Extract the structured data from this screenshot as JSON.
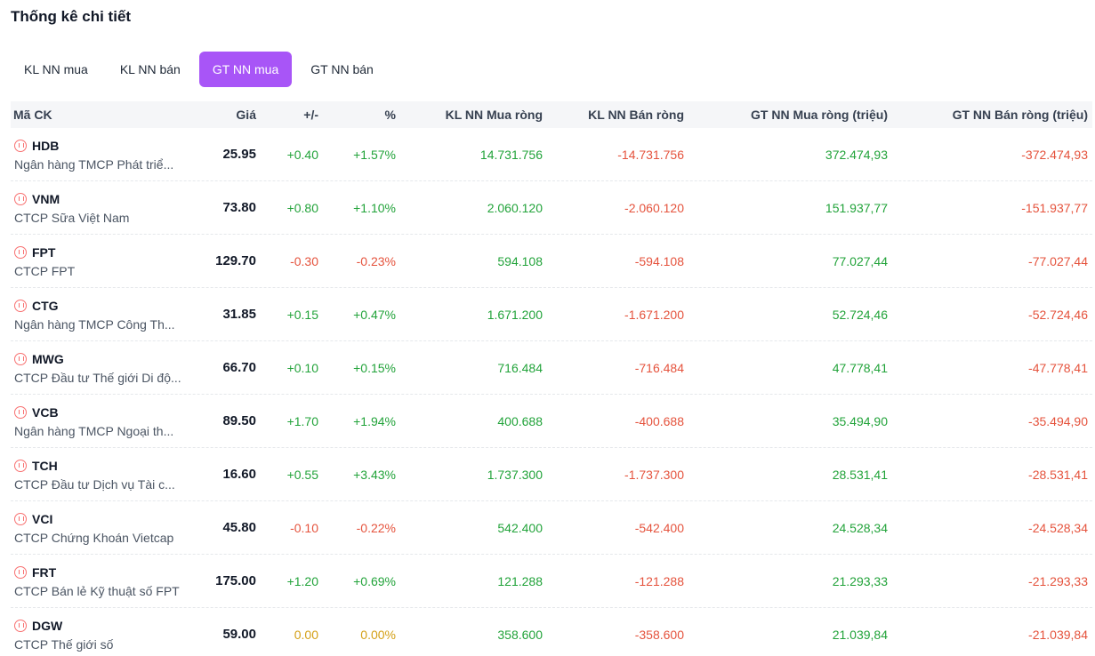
{
  "page_title": "Thống kê chi tiết",
  "tabs": [
    {
      "label": "KL NN mua",
      "active": false
    },
    {
      "label": "KL NN bán",
      "active": false
    },
    {
      "label": "GT NN mua",
      "active": true
    },
    {
      "label": "GT NN bán",
      "active": false
    }
  ],
  "columns": {
    "symbol": "Mã CK",
    "price": "Giá",
    "change": "+/-",
    "percent": "%",
    "kl_buy": "KL NN Mua ròng",
    "kl_sell": "KL NN Bán ròng",
    "gt_buy": "GT NN Mua ròng (triệu)",
    "gt_sell": "GT NN Bán ròng (triệu)"
  },
  "colors": {
    "accent": "#a855f7",
    "up": "#22a33a",
    "down": "#e5533d",
    "reference": "#d4a017",
    "icon": "#f87171"
  },
  "rows": [
    {
      "code": "HDB",
      "name": "Ngân hàng TMCP Phát triể...",
      "price": "25.95",
      "change": "+0.40",
      "percent": "+1.57%",
      "trend": "up",
      "kl_buy": "14.731.756",
      "kl_sell": "-14.731.756",
      "gt_buy": "372.474,93",
      "gt_sell": "-372.474,93"
    },
    {
      "code": "VNM",
      "name": "CTCP Sữa Việt Nam",
      "price": "73.80",
      "change": "+0.80",
      "percent": "+1.10%",
      "trend": "up",
      "kl_buy": "2.060.120",
      "kl_sell": "-2.060.120",
      "gt_buy": "151.937,77",
      "gt_sell": "-151.937,77"
    },
    {
      "code": "FPT",
      "name": "CTCP FPT",
      "price": "129.70",
      "change": "-0.30",
      "percent": "-0.23%",
      "trend": "down",
      "kl_buy": "594.108",
      "kl_sell": "-594.108",
      "gt_buy": "77.027,44",
      "gt_sell": "-77.027,44"
    },
    {
      "code": "CTG",
      "name": "Ngân hàng TMCP Công Th...",
      "price": "31.85",
      "change": "+0.15",
      "percent": "+0.47%",
      "trend": "up",
      "kl_buy": "1.671.200",
      "kl_sell": "-1.671.200",
      "gt_buy": "52.724,46",
      "gt_sell": "-52.724,46"
    },
    {
      "code": "MWG",
      "name": "CTCP Đầu tư Thế giới Di độ...",
      "price": "66.70",
      "change": "+0.10",
      "percent": "+0.15%",
      "trend": "up",
      "kl_buy": "716.484",
      "kl_sell": "-716.484",
      "gt_buy": "47.778,41",
      "gt_sell": "-47.778,41"
    },
    {
      "code": "VCB",
      "name": "Ngân hàng TMCP Ngoại th...",
      "price": "89.50",
      "change": "+1.70",
      "percent": "+1.94%",
      "trend": "up",
      "kl_buy": "400.688",
      "kl_sell": "-400.688",
      "gt_buy": "35.494,90",
      "gt_sell": "-35.494,90"
    },
    {
      "code": "TCH",
      "name": "CTCP Đầu tư Dịch vụ Tài c...",
      "price": "16.60",
      "change": "+0.55",
      "percent": "+3.43%",
      "trend": "up",
      "kl_buy": "1.737.300",
      "kl_sell": "-1.737.300",
      "gt_buy": "28.531,41",
      "gt_sell": "-28.531,41"
    },
    {
      "code": "VCI",
      "name": "CTCP Chứng Khoán Vietcap",
      "price": "45.80",
      "change": "-0.10",
      "percent": "-0.22%",
      "trend": "down",
      "kl_buy": "542.400",
      "kl_sell": "-542.400",
      "gt_buy": "24.528,34",
      "gt_sell": "-24.528,34"
    },
    {
      "code": "FRT",
      "name": "CTCP Bán lẻ Kỹ thuật số FPT",
      "price": "175.00",
      "change": "+1.20",
      "percent": "+0.69%",
      "trend": "up",
      "kl_buy": "121.288",
      "kl_sell": "-121.288",
      "gt_buy": "21.293,33",
      "gt_sell": "-21.293,33"
    },
    {
      "code": "DGW",
      "name": "CTCP Thế giới số",
      "price": "59.00",
      "change": "0.00",
      "percent": "0.00%",
      "trend": "ref",
      "kl_buy": "358.600",
      "kl_sell": "-358.600",
      "gt_buy": "21.039,84",
      "gt_sell": "-21.039,84"
    }
  ]
}
